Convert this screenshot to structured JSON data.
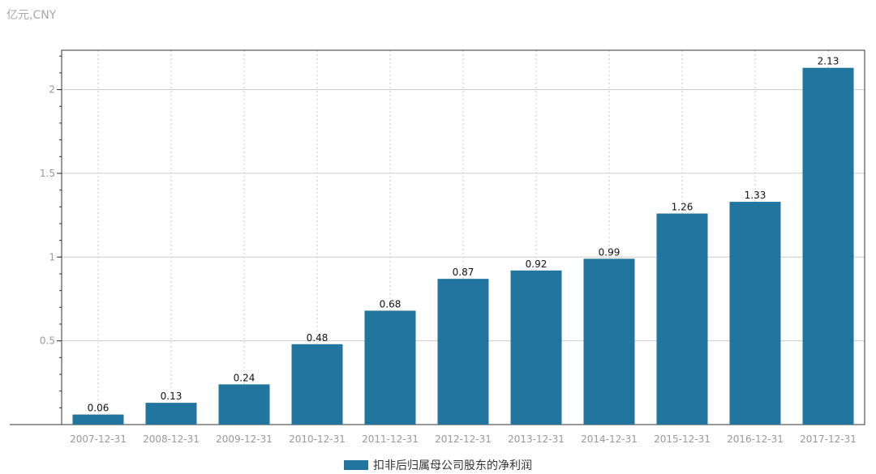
{
  "chart_data": {
    "type": "bar",
    "unit": "亿元,CNY",
    "categories": [
      "2007-12-31",
      "2008-12-31",
      "2009-12-31",
      "2010-12-31",
      "2011-12-31",
      "2012-12-31",
      "2013-12-31",
      "2014-12-31",
      "2015-12-31",
      "2016-12-31",
      "2017-12-31"
    ],
    "series": [
      {
        "name": "扣非后归属母公司股东的净利润",
        "values": [
          0.06,
          0.13,
          0.24,
          0.48,
          0.68,
          0.87,
          0.92,
          0.99,
          1.26,
          1.33,
          2.13
        ],
        "labels": [
          "0.06",
          "0.13",
          "0.24",
          "0.48",
          "0.68",
          "0.87",
          "0.92",
          "0.99",
          "1.26",
          "1.33",
          "2.13"
        ],
        "color": "#21759f"
      }
    ],
    "yticks": [
      0.5,
      1,
      1.5,
      2
    ],
    "ytick_labels": [
      "0.5",
      "1",
      "1.5",
      "2"
    ],
    "ylim": [
      0,
      2.2
    ],
    "grid": true,
    "legend_position": "bottom"
  }
}
